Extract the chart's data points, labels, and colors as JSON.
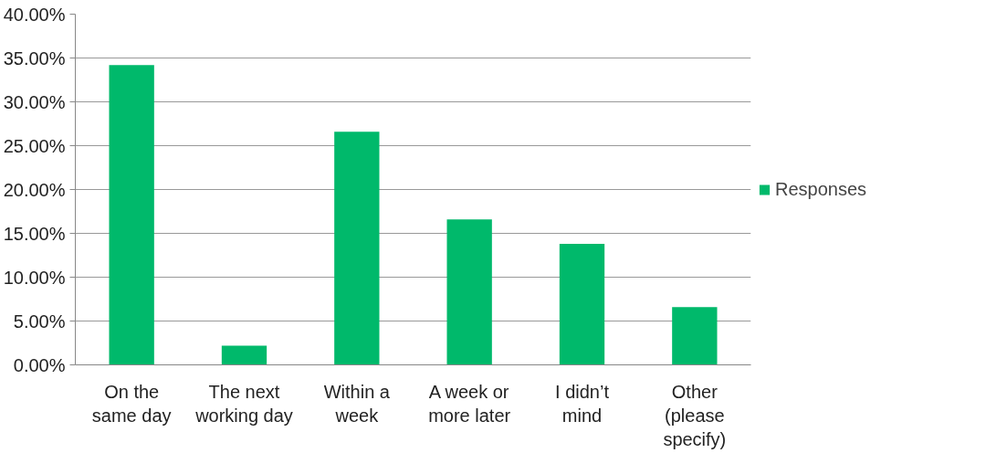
{
  "chart_data": {
    "type": "bar",
    "categories": [
      "On the\nsame day",
      "The next\nworking day",
      "Within a\nweek",
      "A week or\nmore later",
      "I didn’t\nmind",
      "Other\n(please\nspecify)"
    ],
    "series": [
      {
        "name": "Responses",
        "color": "#00b96b",
        "values": [
          34.2,
          2.2,
          26.6,
          16.6,
          13.8,
          6.6
        ]
      }
    ],
    "ylim": [
      0,
      40
    ],
    "yticks": [
      {
        "value": 0,
        "label": "0.00%"
      },
      {
        "value": 5,
        "label": "5.00%"
      },
      {
        "value": 10,
        "label": "10.00%"
      },
      {
        "value": 15,
        "label": "15.00%"
      },
      {
        "value": 20,
        "label": "20.00%"
      },
      {
        "value": 25,
        "label": "25.00%"
      },
      {
        "value": 30,
        "label": "30.00%"
      },
      {
        "value": 35,
        "label": "35.00%"
      },
      {
        "value": 40,
        "label": "40.00%"
      }
    ],
    "grid": "y",
    "legend": "right"
  }
}
